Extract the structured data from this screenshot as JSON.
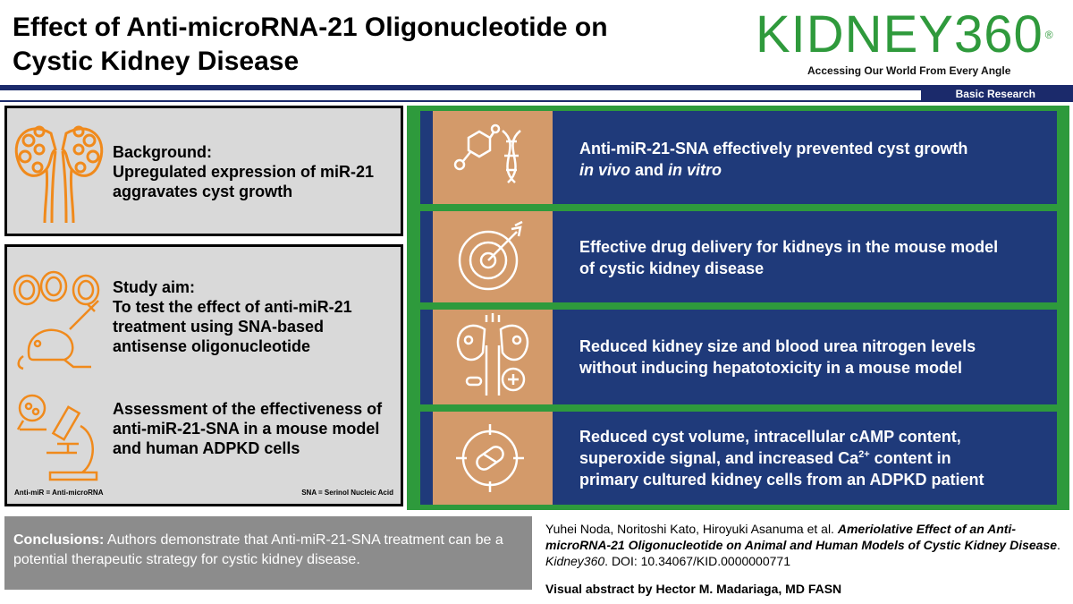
{
  "header": {
    "title_line1": "Effect of Anti-microRNA-21 Oligonucleotide on",
    "title_line2": "Cystic Kidney Disease",
    "brand_name": "KIDNEY360",
    "brand_reg": "®",
    "brand_tagline": "Accessing Our World From Every Angle",
    "section": "Basic Research"
  },
  "background": {
    "label": "Background:",
    "line1": "Upregulated expression of miR-21",
    "line2": "aggravates cyst growth"
  },
  "study": {
    "aim_label": "Study aim:",
    "aim_line1": "To test  the effect of anti-miR-21",
    "aim_line2": "treatment using SNA-based",
    "aim_line3": "antisense oligonucleotide",
    "assess_line1": "Assessment of the effectiveness of",
    "assess_line2": "anti-miR-21-SNA in a mouse model",
    "assess_line3": "and human ADPKD cells",
    "footnote_left": "Anti-miR = Anti-microRNA",
    "footnote_right": "SNA = Serinol Nucleic Acid"
  },
  "findings": [
    {
      "line1": "Anti-miR-21-SNA effectively prevented cyst growth",
      "line2a": "in vivo",
      "line2b": " and ",
      "line2c": "in vitro",
      "icon": "dna-molecule-icon"
    },
    {
      "line1": "Effective drug delivery for kidneys in the mouse model",
      "line2": "of cystic kidney disease",
      "icon": "target-arrow-icon"
    },
    {
      "line1": "Reduced kidney size and blood urea nitrogen levels",
      "line2": "without inducing hepatotoxicity in a mouse model",
      "icon": "kidney-medicine-icon"
    },
    {
      "line1": "Reduced cyst volume, intracellular cAMP content,",
      "line2a": "superoxide signal, and increased Ca",
      "line2sup": "2+",
      "line2b": " content in",
      "line3": "primary cultured kidney cells from an ADPKD patient",
      "icon": "pill-crosshair-icon"
    }
  ],
  "conclusion": {
    "label": "Conclusions:",
    "text": " Authors demonstrate that Anti-miR-21-SNA treatment can be a potential therapeutic strategy for cystic kidney disease."
  },
  "citation": {
    "authors": "Yuhei Noda, Noritoshi Kato, Hiroyuki Asanuma et al. ",
    "article_title": "Ameriolative Effect of an Anti-microRNA-21 Oligonucleotide on Animal and Human Models of Cystic Kidney Disease",
    "sep": ". ",
    "journal": "Kidney360",
    "doi": ". DOI: 10.34067/KID.0000000771"
  },
  "credit": "Visual abstract by Hector M. Madariaga, MD FASN",
  "colors": {
    "brand_green": "#2f9a3c",
    "navy": "#1b2a6b",
    "card_blue": "#1f3a7a",
    "tile_orange": "#d39a6a",
    "icon_orange": "#f08a1c",
    "panel_gray": "#d9d9d9",
    "conclusion_gray": "#8c8c8c"
  }
}
